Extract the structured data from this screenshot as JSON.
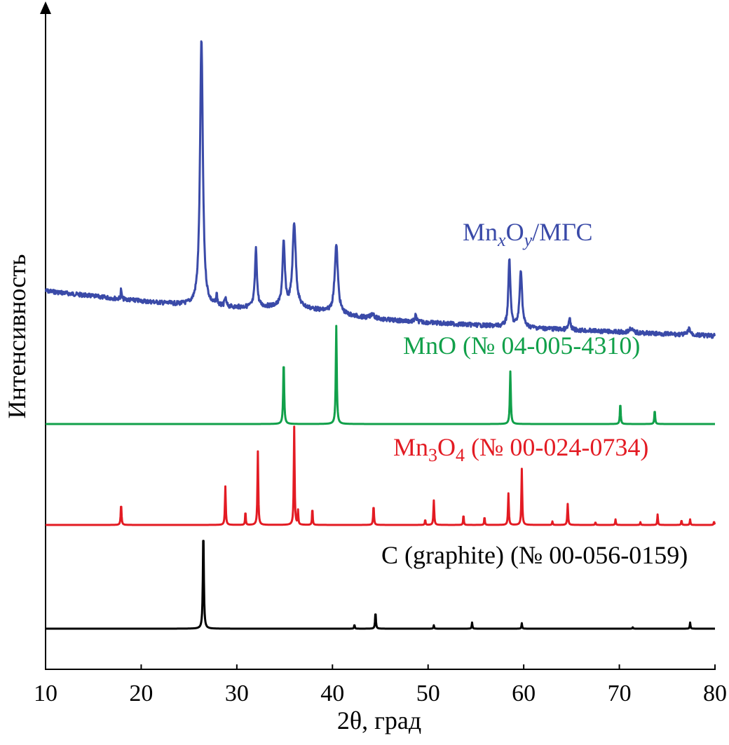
{
  "chart_data": {
    "type": "line",
    "xlabel": "2θ, град",
    "ylabel": "Интенсивность",
    "xlim": [
      10,
      80
    ],
    "xticks": [
      "10",
      "20",
      "30",
      "40",
      "50",
      "60",
      "70",
      "80"
    ],
    "yticks_shown": false,
    "grid": false,
    "legend": "inline labels above each trace",
    "series": [
      {
        "name": "MnxOy/МГС",
        "label_main": "Mn",
        "label_sub_x": "x",
        "label_mid": "O",
        "label_sub_y": "y",
        "label_tail": "/МГС",
        "color": "#3a4aa8",
        "baseline": 0.35,
        "peaks": [
          {
            "x": 17.9,
            "h": 0.1,
            "w": 0.1
          },
          {
            "x": 26.3,
            "h": 2.55,
            "w": 0.35
          },
          {
            "x": 27.9,
            "h": 0.1,
            "w": 0.15
          },
          {
            "x": 28.8,
            "h": 0.08,
            "w": 0.2
          },
          {
            "x": 32.0,
            "h": 0.55,
            "w": 0.25
          },
          {
            "x": 34.9,
            "h": 0.6,
            "w": 0.3
          },
          {
            "x": 36.0,
            "h": 0.8,
            "w": 0.4
          },
          {
            "x": 40.4,
            "h": 0.65,
            "w": 0.4
          },
          {
            "x": 44.2,
            "h": 0.05,
            "w": 0.4
          },
          {
            "x": 48.7,
            "h": 0.06,
            "w": 0.2
          },
          {
            "x": 58.5,
            "h": 0.65,
            "w": 0.25
          },
          {
            "x": 59.7,
            "h": 0.55,
            "w": 0.3
          },
          {
            "x": 64.8,
            "h": 0.1,
            "w": 0.25
          },
          {
            "x": 71.2,
            "h": 0.04,
            "w": 0.4
          },
          {
            "x": 77.3,
            "h": 0.06,
            "w": 0.3
          }
        ]
      },
      {
        "name": "MnO (№ 04-005-4310)",
        "label_text": "MnO (№ 04-005-4310)",
        "color": "#11a04a",
        "baseline": 0.0,
        "peaks": [
          {
            "x": 34.9,
            "h": 0.9,
            "w": 0.12
          },
          {
            "x": 40.4,
            "h": 1.4,
            "w": 0.12
          },
          {
            "x": 58.6,
            "h": 0.75,
            "w": 0.12
          },
          {
            "x": 70.1,
            "h": 0.3,
            "w": 0.1
          },
          {
            "x": 73.7,
            "h": 0.2,
            "w": 0.1
          }
        ]
      },
      {
        "name": "Mn3O4 (№ 00-024-0734)",
        "label_main": "Mn",
        "label_sub": "3",
        "label_mid": "O",
        "label_sub2": "4",
        "label_tail": " (№ 00-024-0734)",
        "color": "#e31b23",
        "baseline": 0.0,
        "peaks": [
          {
            "x": 17.9,
            "h": 0.3,
            "w": 0.1
          },
          {
            "x": 28.8,
            "h": 0.55,
            "w": 0.1
          },
          {
            "x": 30.9,
            "h": 0.2,
            "w": 0.08
          },
          {
            "x": 32.2,
            "h": 1.05,
            "w": 0.1
          },
          {
            "x": 36.0,
            "h": 1.4,
            "w": 0.1
          },
          {
            "x": 36.4,
            "h": 0.2,
            "w": 0.08
          },
          {
            "x": 37.9,
            "h": 0.25,
            "w": 0.08
          },
          {
            "x": 44.3,
            "h": 0.28,
            "w": 0.1
          },
          {
            "x": 49.7,
            "h": 0.08,
            "w": 0.08
          },
          {
            "x": 50.6,
            "h": 0.35,
            "w": 0.1
          },
          {
            "x": 53.7,
            "h": 0.15,
            "w": 0.08
          },
          {
            "x": 55.9,
            "h": 0.12,
            "w": 0.08
          },
          {
            "x": 58.4,
            "h": 0.45,
            "w": 0.1
          },
          {
            "x": 59.8,
            "h": 0.8,
            "w": 0.1
          },
          {
            "x": 63.0,
            "h": 0.05,
            "w": 0.08
          },
          {
            "x": 64.6,
            "h": 0.3,
            "w": 0.1
          },
          {
            "x": 67.5,
            "h": 0.04,
            "w": 0.08
          },
          {
            "x": 69.6,
            "h": 0.08,
            "w": 0.08
          },
          {
            "x": 72.2,
            "h": 0.04,
            "w": 0.08
          },
          {
            "x": 74.0,
            "h": 0.15,
            "w": 0.08
          },
          {
            "x": 76.5,
            "h": 0.07,
            "w": 0.08
          },
          {
            "x": 77.4,
            "h": 0.08,
            "w": 0.08
          },
          {
            "x": 79.9,
            "h": 0.05,
            "w": 0.08
          }
        ]
      },
      {
        "name": "C (graphite) (№ 00-056-0159)",
        "label_text": "C (graphite) (№ 00-056-0159)",
        "color": "#000000",
        "baseline": 0.0,
        "peaks": [
          {
            "x": 26.5,
            "h": 1.42,
            "w": 0.12
          },
          {
            "x": 42.3,
            "h": 0.06,
            "w": 0.08
          },
          {
            "x": 44.5,
            "h": 0.24,
            "w": 0.1
          },
          {
            "x": 50.6,
            "h": 0.05,
            "w": 0.08
          },
          {
            "x": 54.6,
            "h": 0.09,
            "w": 0.08
          },
          {
            "x": 59.8,
            "h": 0.08,
            "w": 0.08
          },
          {
            "x": 71.4,
            "h": 0.02,
            "w": 0.08
          },
          {
            "x": 77.4,
            "h": 0.09,
            "w": 0.08
          }
        ]
      }
    ]
  }
}
